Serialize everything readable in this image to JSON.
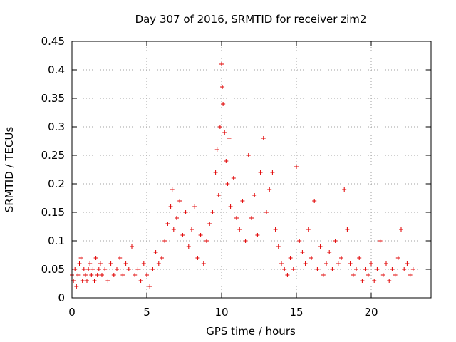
{
  "chart_data": {
    "type": "scatter",
    "title": "Day 307 of 2016, SRMTID for receiver zim2",
    "xlabel": "GPS time / hours",
    "ylabel": "SRMTID / TECUs",
    "xlim": [
      0,
      24
    ],
    "ylim": [
      0,
      0.45
    ],
    "xticks": [
      "0",
      "5",
      "10",
      "15",
      "20"
    ],
    "yticks": [
      "0",
      "0.05",
      "0.1",
      "0.15",
      "0.2",
      "0.25",
      "0.3",
      "0.35",
      "0.4",
      "0.45"
    ],
    "grid": true,
    "marker": "plus",
    "color": "#e00000",
    "series": [
      {
        "name": "SRMTID",
        "points": [
          [
            0.0,
            0.04
          ],
          [
            0.1,
            0.03
          ],
          [
            0.2,
            0.05
          ],
          [
            0.3,
            0.02
          ],
          [
            0.4,
            0.04
          ],
          [
            0.5,
            0.06
          ],
          [
            0.6,
            0.07
          ],
          [
            0.7,
            0.03
          ],
          [
            0.8,
            0.05
          ],
          [
            0.9,
            0.04
          ],
          [
            1.0,
            0.03
          ],
          [
            1.1,
            0.05
          ],
          [
            1.2,
            0.06
          ],
          [
            1.3,
            0.04
          ],
          [
            1.4,
            0.05
          ],
          [
            1.5,
            0.03
          ],
          [
            1.6,
            0.07
          ],
          [
            1.7,
            0.04
          ],
          [
            1.8,
            0.05
          ],
          [
            1.9,
            0.06
          ],
          [
            2.0,
            0.04
          ],
          [
            2.2,
            0.05
          ],
          [
            2.4,
            0.03
          ],
          [
            2.6,
            0.06
          ],
          [
            2.8,
            0.04
          ],
          [
            3.0,
            0.05
          ],
          [
            3.2,
            0.07
          ],
          [
            3.4,
            0.04
          ],
          [
            3.6,
            0.06
          ],
          [
            3.8,
            0.05
          ],
          [
            4.0,
            0.09
          ],
          [
            4.2,
            0.04
          ],
          [
            4.4,
            0.05
          ],
          [
            4.6,
            0.03
          ],
          [
            4.8,
            0.06
          ],
          [
            5.0,
            0.04
          ],
          [
            5.2,
            0.02
          ],
          [
            5.4,
            0.05
          ],
          [
            5.6,
            0.08
          ],
          [
            5.8,
            0.06
          ],
          [
            6.0,
            0.07
          ],
          [
            6.2,
            0.1
          ],
          [
            6.4,
            0.13
          ],
          [
            6.6,
            0.16
          ],
          [
            6.7,
            0.19
          ],
          [
            6.8,
            0.12
          ],
          [
            7.0,
            0.14
          ],
          [
            7.2,
            0.17
          ],
          [
            7.4,
            0.11
          ],
          [
            7.6,
            0.15
          ],
          [
            7.8,
            0.09
          ],
          [
            8.0,
            0.12
          ],
          [
            8.2,
            0.16
          ],
          [
            8.4,
            0.07
          ],
          [
            8.6,
            0.11
          ],
          [
            8.8,
            0.06
          ],
          [
            9.0,
            0.1
          ],
          [
            9.2,
            0.13
          ],
          [
            9.4,
            0.15
          ],
          [
            9.6,
            0.22
          ],
          [
            9.7,
            0.26
          ],
          [
            9.8,
            0.18
          ],
          [
            9.9,
            0.3
          ],
          [
            10.0,
            0.41
          ],
          [
            10.05,
            0.37
          ],
          [
            10.1,
            0.34
          ],
          [
            10.2,
            0.29
          ],
          [
            10.3,
            0.24
          ],
          [
            10.4,
            0.2
          ],
          [
            10.5,
            0.28
          ],
          [
            10.6,
            0.16
          ],
          [
            10.8,
            0.21
          ],
          [
            11.0,
            0.14
          ],
          [
            11.2,
            0.12
          ],
          [
            11.4,
            0.17
          ],
          [
            11.6,
            0.1
          ],
          [
            11.8,
            0.25
          ],
          [
            12.0,
            0.14
          ],
          [
            12.2,
            0.18
          ],
          [
            12.4,
            0.11
          ],
          [
            12.6,
            0.22
          ],
          [
            12.8,
            0.28
          ],
          [
            13.0,
            0.15
          ],
          [
            13.2,
            0.19
          ],
          [
            13.4,
            0.22
          ],
          [
            13.6,
            0.12
          ],
          [
            13.8,
            0.09
          ],
          [
            14.0,
            0.06
          ],
          [
            14.2,
            0.05
          ],
          [
            14.4,
            0.04
          ],
          [
            14.6,
            0.07
          ],
          [
            14.8,
            0.05
          ],
          [
            15.0,
            0.23
          ],
          [
            15.2,
            0.1
          ],
          [
            15.4,
            0.08
          ],
          [
            15.6,
            0.06
          ],
          [
            15.8,
            0.12
          ],
          [
            16.0,
            0.07
          ],
          [
            16.2,
            0.17
          ],
          [
            16.4,
            0.05
          ],
          [
            16.6,
            0.09
          ],
          [
            16.8,
            0.04
          ],
          [
            17.0,
            0.06
          ],
          [
            17.2,
            0.08
          ],
          [
            17.4,
            0.05
          ],
          [
            17.6,
            0.1
          ],
          [
            17.8,
            0.06
          ],
          [
            18.0,
            0.07
          ],
          [
            18.2,
            0.19
          ],
          [
            18.4,
            0.12
          ],
          [
            18.6,
            0.06
          ],
          [
            18.8,
            0.04
          ],
          [
            19.0,
            0.05
          ],
          [
            19.2,
            0.07
          ],
          [
            19.4,
            0.03
          ],
          [
            19.6,
            0.05
          ],
          [
            19.8,
            0.04
          ],
          [
            20.0,
            0.06
          ],
          [
            20.2,
            0.03
          ],
          [
            20.4,
            0.05
          ],
          [
            20.6,
            0.1
          ],
          [
            20.8,
            0.04
          ],
          [
            21.0,
            0.06
          ],
          [
            21.2,
            0.03
          ],
          [
            21.4,
            0.05
          ],
          [
            21.6,
            0.04
          ],
          [
            21.8,
            0.07
          ],
          [
            22.0,
            0.12
          ],
          [
            22.2,
            0.05
          ],
          [
            22.4,
            0.06
          ],
          [
            22.6,
            0.04
          ],
          [
            22.8,
            0.05
          ]
        ]
      }
    ]
  }
}
